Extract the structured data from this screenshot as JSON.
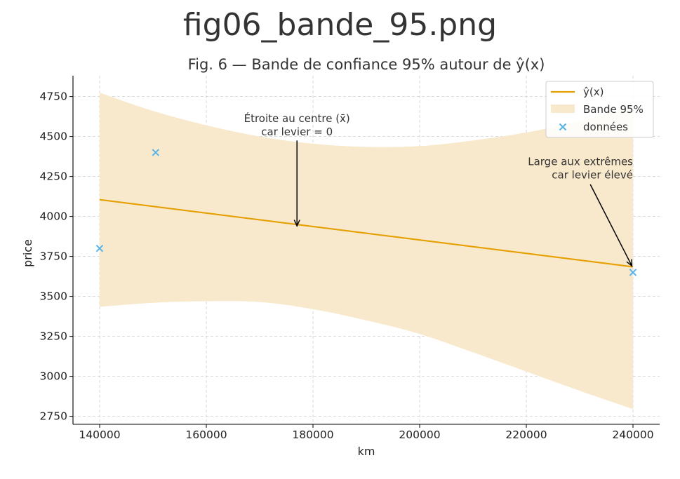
{
  "page_title": "fig06_bande_95.png",
  "chart_data": {
    "type": "line",
    "title": "Fig. 6 — Bande de confiance 95% autour de ŷ(x)",
    "xlabel": "km",
    "ylabel": "price",
    "xlim": [
      135000,
      245000
    ],
    "ylim": [
      2700,
      4880
    ],
    "xticks": [
      140000,
      160000,
      180000,
      200000,
      220000,
      240000
    ],
    "xtick_labels": [
      "140000",
      "160000",
      "180000",
      "200000",
      "220000",
      "240000"
    ],
    "yticks": [
      2750,
      3000,
      3250,
      3500,
      3750,
      4000,
      4250,
      4500,
      4750
    ],
    "ytick_labels": [
      "2750",
      "3000",
      "3250",
      "3500",
      "3750",
      "4000",
      "4250",
      "4500",
      "4750"
    ],
    "grid": true,
    "legend_position": "top-right",
    "series": [
      {
        "name": "ŷ(x)",
        "kind": "line",
        "color": "#e69f00",
        "x": [
          140000,
          240000
        ],
        "y": [
          4105,
          3685
        ]
      },
      {
        "name": "Bande 95%",
        "kind": "band",
        "color": "#f9e9cc",
        "x": [
          140000,
          150000,
          160000,
          170000,
          180000,
          190000,
          200000,
          210000,
          220000,
          230000,
          240000
        ],
        "upper": [
          4775,
          4660,
          4570,
          4500,
          4455,
          4435,
          4440,
          4475,
          4525,
          4595,
          4680
        ],
        "lower": [
          3435,
          3460,
          3470,
          3465,
          3420,
          3350,
          3265,
          3150,
          3030,
          2910,
          2795
        ]
      },
      {
        "name": "données",
        "kind": "scatter",
        "color": "#56b4e9",
        "x": [
          140000,
          150500,
          240000
        ],
        "y": [
          3800,
          4400,
          3650
        ]
      }
    ],
    "annotations": [
      {
        "lines": [
          "Étroite au centre (x̄)",
          "car levier = 0"
        ],
        "text_at": [
          177000,
          4590
        ],
        "arrow_from": [
          177000,
          4475
        ],
        "arrow_to": [
          177000,
          3940
        ],
        "align": "middle"
      },
      {
        "lines": [
          "Large aux extrêmes",
          "car levier élevé"
        ],
        "text_at": [
          240000,
          4320
        ],
        "arrow_from": [
          232000,
          4200
        ],
        "arrow_to": [
          239800,
          3690
        ],
        "align": "end"
      }
    ]
  }
}
